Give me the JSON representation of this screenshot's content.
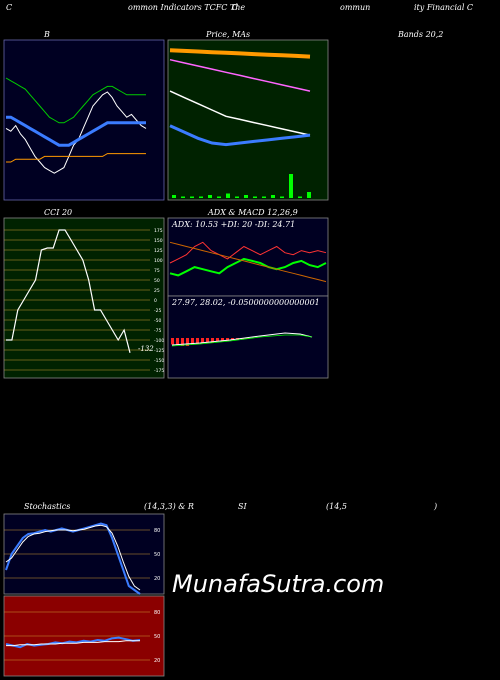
{
  "header": {
    "t1": "C",
    "t2": "ommon Indicators TCFC The",
    "t3": "C",
    "t4": "ommun",
    "t5": "ity Financial C"
  },
  "labels": {
    "bb_left": "B",
    "bb_mid": "Price, MAs",
    "bb_right": "Bands 20,2",
    "cci_title": "CCI 20",
    "adx_title": "ADX  & MACD 12,26,9",
    "adx_values": "ADX: 10.53  +DI: 20  -DI: 24.71",
    "macd_values": "27.97,  28.02,  -0.0500000000000001",
    "stoch_l1": "Stochastics",
    "stoch_l2": "(14,3,3) & R",
    "stoch_l3": "SI",
    "stoch_l4": "(14,5",
    "stoch_l5": ")",
    "watermark": "MunafaSutra.com"
  },
  "chart_data": [
    {
      "type": "line",
      "name": "bollinger-bands",
      "x_count": 30,
      "series": [
        {
          "color": "#ffffff",
          "values": [
            62,
            61,
            63,
            60,
            58,
            55,
            52,
            50,
            48,
            47,
            46,
            47,
            48,
            52,
            56,
            58,
            62,
            66,
            70,
            72,
            74,
            75,
            73,
            70,
            68,
            66,
            67,
            65,
            63,
            62
          ]
        },
        {
          "color": "#3b7cff",
          "values": [
            66,
            66,
            65,
            64,
            63,
            62,
            61,
            60,
            59,
            58,
            57,
            56,
            56,
            56,
            57,
            58,
            59,
            60,
            61,
            62,
            63,
            64,
            64,
            64,
            64,
            64,
            64,
            64,
            64,
            64
          ]
        },
        {
          "color": "#00cc00",
          "values": [
            80,
            79,
            78,
            77,
            76,
            74,
            72,
            70,
            68,
            66,
            65,
            64,
            64,
            65,
            66,
            68,
            70,
            72,
            74,
            75,
            76,
            77,
            77,
            76,
            75,
            74,
            74,
            74,
            74,
            74
          ]
        },
        {
          "color": "#ff9900",
          "values": [
            50,
            50,
            51,
            51,
            51,
            51,
            51,
            51,
            52,
            52,
            52,
            52,
            52,
            52,
            52,
            52,
            52,
            52,
            52,
            52,
            52,
            53,
            53,
            53,
            53,
            53,
            53,
            53,
            53,
            53
          ]
        }
      ]
    },
    {
      "type": "line",
      "name": "price-mas",
      "series": [
        {
          "color": "#ff9900",
          "values": [
            96,
            95.6,
            95.2,
            94.8,
            94.4,
            94,
            93.6,
            93.2,
            92.8,
            92.4,
            92
          ]
        },
        {
          "color": "#ff66ff",
          "values": [
            90,
            88,
            86,
            84,
            82,
            80,
            78,
            76,
            74,
            72,
            70
          ]
        },
        {
          "color": "#ffffff",
          "values": [
            70,
            66,
            62,
            58,
            54,
            52,
            50,
            48,
            46,
            44,
            42
          ]
        },
        {
          "color": "#3b7cff",
          "values": [
            48,
            44,
            40,
            37,
            36,
            37,
            38,
            39,
            40,
            41,
            42
          ]
        }
      ],
      "volume": [
        2,
        1,
        1,
        1,
        2,
        1,
        3,
        1,
        2,
        1,
        1,
        2,
        1,
        16,
        1,
        4
      ]
    },
    {
      "type": "line",
      "name": "cci",
      "ylim": [
        -175,
        175
      ],
      "ticks": [
        175,
        150,
        125,
        100,
        75,
        50,
        25,
        0,
        -25,
        -50,
        -75,
        -100,
        -125,
        -150,
        -175
      ],
      "values": [
        -100,
        -100,
        -25,
        0,
        25,
        50,
        125,
        130,
        130,
        175,
        175,
        150,
        125,
        100,
        50,
        -25,
        -25,
        -50,
        -75,
        -100,
        -75,
        -132
      ],
      "last_label": "-132"
    },
    {
      "type": "line",
      "name": "adx",
      "series": [
        {
          "color": "#00ff00",
          "values": [
            15,
            14,
            16,
            18,
            17,
            16,
            15,
            18,
            20,
            22,
            21,
            20,
            18,
            17,
            18,
            20,
            21,
            19,
            18,
            20
          ]
        },
        {
          "color": "#ff3333",
          "values": [
            20,
            22,
            24,
            28,
            30,
            26,
            24,
            22,
            25,
            28,
            26,
            24,
            26,
            28,
            25,
            24,
            26,
            25,
            26,
            25
          ]
        },
        {
          "color": "#cc6600",
          "values": [
            30,
            29,
            28,
            27,
            26,
            25,
            24,
            23,
            22,
            21,
            20,
            19,
            18,
            17,
            16,
            15,
            14,
            13,
            12,
            11
          ]
        }
      ]
    },
    {
      "type": "bar",
      "name": "macd",
      "values": [
        -0.4,
        -0.4,
        -0.5,
        -0.5,
        -0.4,
        -0.4,
        -0.3,
        -0.3,
        -0.3,
        -0.2,
        -0.2,
        -0.2,
        -0.1,
        -0.1,
        -0.1,
        -0.05
      ],
      "macd": 27.97,
      "signal": 28.02
    },
    {
      "type": "line",
      "name": "stochastics",
      "ticks": [
        80,
        50,
        20
      ],
      "series": [
        {
          "color": "#3b7cff",
          "values": [
            30,
            50,
            60,
            70,
            75,
            76,
            78,
            80,
            78,
            80,
            82,
            80,
            78,
            80,
            82,
            84,
            86,
            88,
            86,
            70,
            50,
            30,
            10,
            5,
            0
          ]
        },
        {
          "color": "#ffffff",
          "values": [
            40,
            45,
            55,
            65,
            72,
            75,
            76,
            78,
            79,
            80,
            80,
            80,
            79,
            80,
            81,
            83,
            85,
            86,
            84,
            76,
            60,
            40,
            22,
            10,
            5
          ]
        }
      ]
    },
    {
      "type": "line",
      "name": "rsi",
      "ticks": [
        80,
        50,
        20
      ],
      "series": [
        {
          "color": "#3b7cff",
          "values": [
            40,
            38,
            36,
            40,
            38,
            39,
            40,
            42,
            41,
            43,
            42,
            44,
            43,
            45,
            44,
            47,
            48,
            46,
            44,
            45
          ]
        },
        {
          "color": "#ffffff",
          "values": [
            38,
            38,
            39,
            39,
            39,
            40,
            40,
            40,
            41,
            41,
            41,
            42,
            42,
            42,
            43,
            43,
            43,
            44,
            44,
            44
          ]
        }
      ]
    }
  ]
}
